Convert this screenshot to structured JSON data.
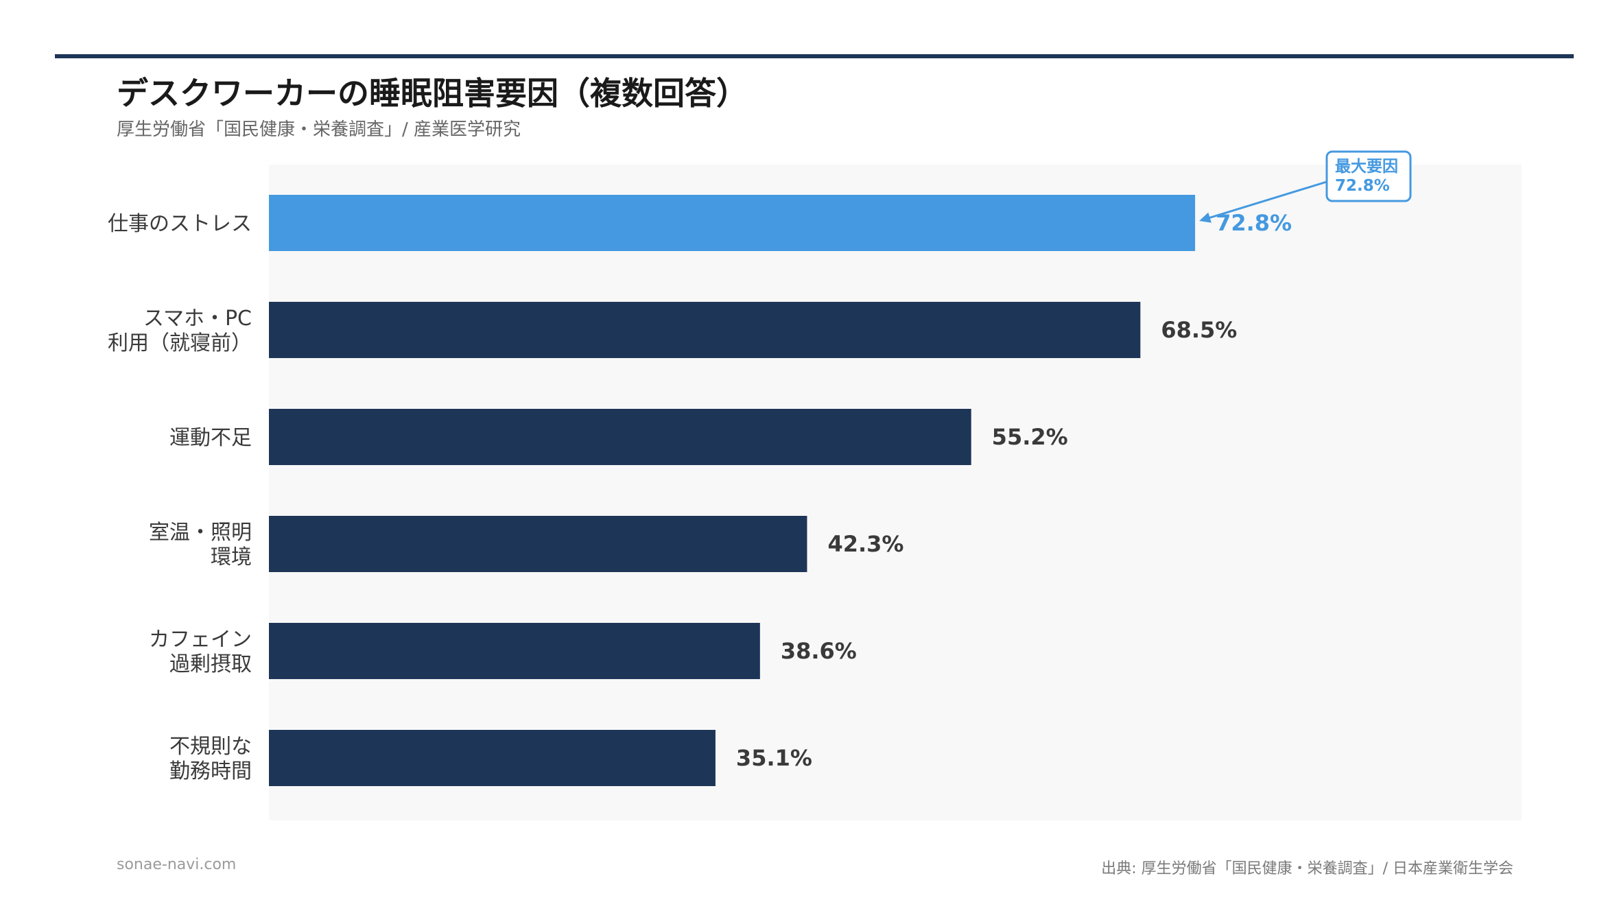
{
  "title": "デスクワーカーの睡眠阻害要因（複数回答）",
  "subtitle": "厚生労働省「国民健康・栄養調査」/ 産業医学研究",
  "footer": {
    "site": "sonae-navi.com",
    "source": "出典: 厚生労働省「国民健康・栄養調査」/ 日本産業衛生学会"
  },
  "colors": {
    "highlight": "#4499e0",
    "bar": "#1d3557",
    "label": "#3a3a3a",
    "value": "#3a3a3a"
  },
  "chart_data": {
    "type": "bar",
    "orientation": "horizontal",
    "categories": [
      [
        "仕事のストレス"
      ],
      [
        "スマホ・PC",
        "利用（就寝前）"
      ],
      [
        "運動不足"
      ],
      [
        "室温・照明",
        "環境"
      ],
      [
        "カフェイン",
        "過剰摂取"
      ],
      [
        "不規則な",
        "勤務時間"
      ]
    ],
    "values": [
      72.8,
      68.5,
      55.2,
      42.3,
      38.6,
      35.1
    ],
    "value_labels": [
      "72.8%",
      "68.5%",
      "55.2%",
      "42.3%",
      "38.6%",
      "35.1%"
    ],
    "highlight_index": 0,
    "xlim": [
      0,
      100
    ],
    "annotation": {
      "lines": [
        "最大要因",
        "72.8%"
      ],
      "target_index": 0
    },
    "grid": false,
    "legend": "none"
  }
}
